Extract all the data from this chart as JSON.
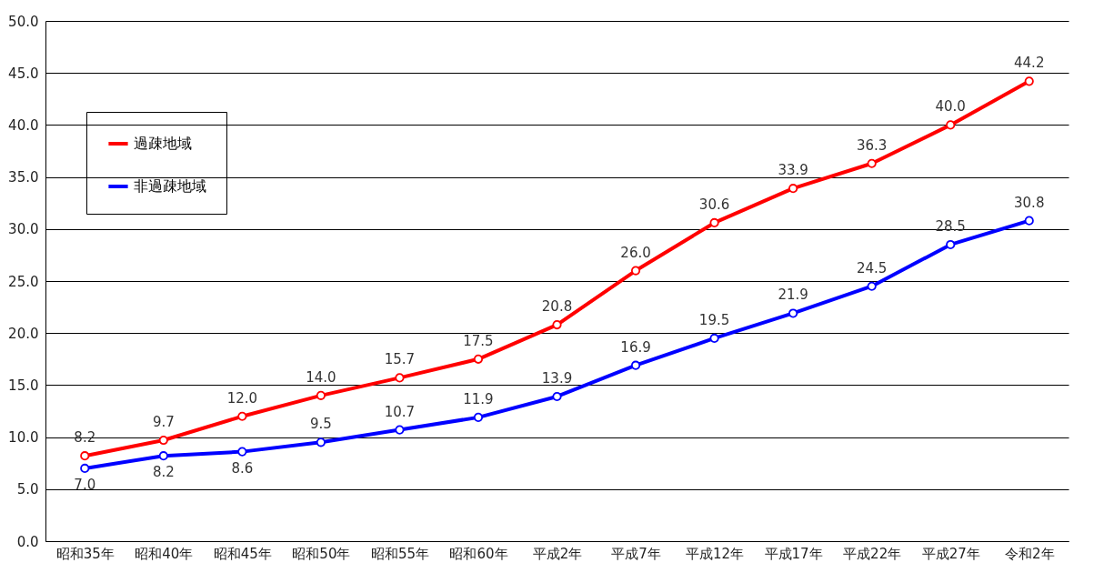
{
  "chart_data": {
    "type": "line",
    "categories": [
      "昭和35年",
      "昭和40年",
      "昭和45年",
      "昭和50年",
      "昭和55年",
      "昭和60年",
      "平成2年",
      "平成7年",
      "平成12年",
      "平成17年",
      "平成22年",
      "平成27年",
      "令和2年"
    ],
    "series": [
      {
        "name": "過疎地域",
        "color": "#ff0000",
        "values": [
          8.2,
          9.7,
          12.0,
          14.0,
          15.7,
          17.5,
          20.8,
          26.0,
          30.6,
          33.9,
          36.3,
          40.0,
          44.2
        ],
        "value_labels": [
          "8.2",
          "9.7",
          "12.0",
          "14.0",
          "15.7",
          "17.5",
          "20.8",
          "26.0",
          "30.6",
          "33.9",
          "36.3",
          "40.0",
          "44.2"
        ]
      },
      {
        "name": "非過疎地域",
        "color": "#0000ff",
        "values": [
          7.0,
          8.2,
          8.6,
          9.5,
          10.7,
          11.9,
          13.9,
          16.9,
          19.5,
          21.9,
          24.5,
          28.5,
          30.8
        ],
        "value_labels": [
          "7.0",
          "8.2",
          "8.6",
          "9.5",
          "10.7",
          "11.9",
          "13.9",
          "16.9",
          "19.5",
          "21.9",
          "24.5",
          "28.5",
          "30.8"
        ]
      }
    ],
    "ylim": [
      0,
      50
    ],
    "yticks": [
      {
        "value": 0,
        "label": "0.0"
      },
      {
        "value": 5,
        "label": "5.0"
      },
      {
        "value": 10,
        "label": "10.0"
      },
      {
        "value": 15,
        "label": "15.0"
      },
      {
        "value": 20,
        "label": "20.0"
      },
      {
        "value": 25,
        "label": "25.0"
      },
      {
        "value": 30,
        "label": "30.0"
      },
      {
        "value": 35,
        "label": "35.0"
      },
      {
        "value": 40,
        "label": "40.0"
      },
      {
        "value": 45,
        "label": "45.0"
      },
      {
        "value": 50,
        "label": "50.0"
      }
    ],
    "grid": "y",
    "legend": "top left",
    "marker": "circle",
    "line_style": "solid"
  }
}
